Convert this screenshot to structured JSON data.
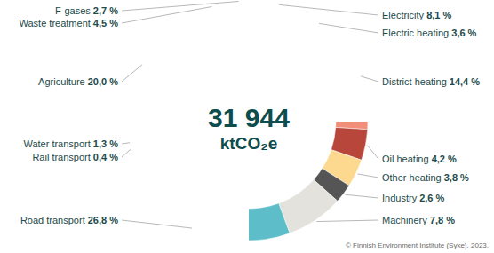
{
  "chart_data": {
    "type": "donut",
    "categories": [
      "Electricity",
      "Electric heating",
      "District heating",
      "Oil heating",
      "Other heating",
      "Industry",
      "Machinery",
      "Road transport",
      "Rail transport",
      "Water transport",
      "Agriculture",
      "Waste treatment",
      "F-gases"
    ],
    "values": [
      8.1,
      3.6,
      14.4,
      4.2,
      3.8,
      2.6,
      7.8,
      26.8,
      0.4,
      1.3,
      20.0,
      4.5,
      2.7
    ],
    "value_labels": [
      "8,1 %",
      "3,6 %",
      "14,4 %",
      "4,2 %",
      "3,8 %",
      "2,6 %",
      "7,8 %",
      "26,8 %",
      "0,4 %",
      "1,3 %",
      "20,0 %",
      "4,5 %",
      "2,7 %"
    ],
    "colors": [
      "#f4a94e",
      "#c8602c",
      "#f28f7b",
      "#b8463a",
      "#fcd98f",
      "#555555",
      "#e4e2dc",
      "#5dbdc8",
      "#1b2b2b",
      "#0d5a73",
      "#8cc79b",
      "#c8e6d2",
      "#0e5c57"
    ],
    "data_labels": true,
    "total": {
      "value": 31944,
      "label": "31 944"
    },
    "unit": "ktCO₂e",
    "source": "© Finnish Environment Institute (Syke). 2023."
  }
}
